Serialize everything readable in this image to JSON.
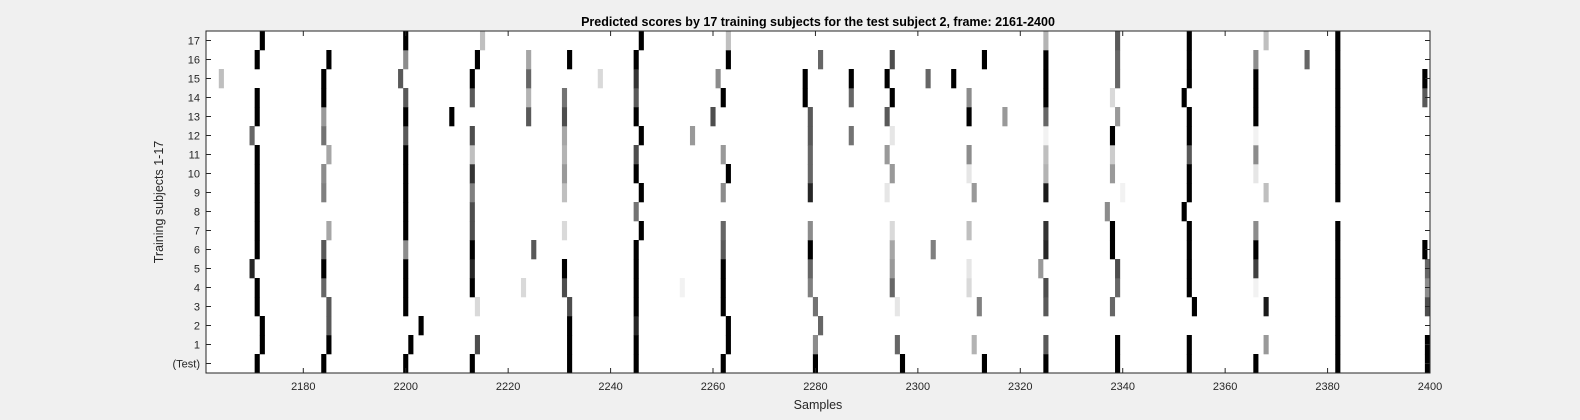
{
  "chart_data": {
    "type": "heatmap",
    "title": "Predicted scores by 17 training subjects for the test subject 2, frame: 2161-2400",
    "xlabel": "Samples",
    "ylabel": "Training subjects 1-17",
    "xlim": [
      2161,
      2400
    ],
    "x_ticks": [
      2180,
      2200,
      2220,
      2240,
      2260,
      2280,
      2300,
      2320,
      2340,
      2360,
      2380,
      2400
    ],
    "rows": [
      "(Test)",
      "1",
      "2",
      "3",
      "4",
      "5",
      "6",
      "7",
      "8",
      "9",
      "10",
      "11",
      "12",
      "13",
      "14",
      "15",
      "16",
      "17"
    ],
    "colormap": "gray (0 = black, 1 = white background)",
    "marks": [
      {
        "row": "(Test)",
        "x": [
          2171,
          2184,
          2200,
          2213,
          2232,
          2245,
          2262,
          2280,
          2297,
          2313,
          2325,
          2339,
          2353,
          2366,
          2382,
          2400
        ],
        "gray": [
          0,
          0,
          0,
          0,
          0,
          0,
          0,
          0,
          0,
          0,
          0,
          0,
          0,
          0,
          0,
          0
        ]
      },
      {
        "row": "1",
        "x": [
          2172,
          2185,
          2201,
          2214,
          2232,
          2245,
          2263,
          2280,
          2296,
          2311,
          2325,
          2339,
          2353,
          2368,
          2382,
          2400
        ],
        "gray": [
          0,
          0,
          0,
          0.3,
          0,
          0,
          0,
          0.55,
          0.4,
          0.7,
          0.35,
          0,
          0,
          0.6,
          0,
          0
        ]
      },
      {
        "row": "2",
        "x": [
          2172,
          2185,
          2203,
          2232,
          2245,
          2263,
          2281,
          2382
        ],
        "gray": [
          0,
          0.35,
          0,
          0,
          0.15,
          0,
          0.4,
          0
        ]
      },
      {
        "row": "3",
        "x": [
          2171,
          2185,
          2200,
          2214,
          2232,
          2245,
          2262,
          2280,
          2296,
          2312,
          2325,
          2338,
          2354,
          2368,
          2382,
          2400
        ],
        "gray": [
          0,
          0.35,
          0,
          0.85,
          0.3,
          0,
          0,
          0.45,
          0.9,
          0.5,
          0.35,
          0.4,
          0,
          0.1,
          0,
          0.3
        ]
      },
      {
        "row": "4",
        "x": [
          2171,
          2184,
          2200,
          2213,
          2223,
          2231,
          2245,
          2254,
          2262,
          2279,
          2295,
          2310,
          2325,
          2339,
          2353,
          2366,
          2382,
          2400
        ],
        "gray": [
          0,
          0.4,
          0,
          0,
          0.85,
          0.3,
          0,
          0.95,
          0,
          0.5,
          0.4,
          0.85,
          0.3,
          0.4,
          0,
          0.95,
          0,
          0.55
        ]
      },
      {
        "row": "5",
        "x": [
          2170,
          2184,
          2200,
          2213,
          2231,
          2245,
          2262,
          2279,
          2295,
          2310,
          2324,
          2339,
          2353,
          2366,
          2382,
          2400
        ],
        "gray": [
          0.15,
          0,
          0,
          0.15,
          0,
          0,
          0,
          0.4,
          0.6,
          0.9,
          0.6,
          0.3,
          0,
          0.25,
          0,
          0.4
        ]
      },
      {
        "row": "6",
        "x": [
          2171,
          2184,
          2200,
          2213,
          2225,
          2245,
          2262,
          2279,
          2295,
          2303,
          2325,
          2338,
          2353,
          2366,
          2382,
          2399
        ],
        "gray": [
          0,
          0.35,
          0.55,
          0,
          0.35,
          0,
          0.35,
          0,
          0.65,
          0.5,
          0.15,
          0,
          0,
          0,
          0,
          0
        ]
      },
      {
        "row": "7",
        "x": [
          2171,
          2185,
          2200,
          2213,
          2231,
          2246,
          2262,
          2279,
          2295,
          2310,
          2325,
          2338,
          2353,
          2366,
          2382
        ],
        "gray": [
          0,
          0.65,
          0,
          0.3,
          0.85,
          0,
          0.4,
          0.55,
          0.85,
          0.75,
          0.2,
          0,
          0,
          0.55,
          0
        ]
      },
      {
        "row": "8",
        "x": [
          2171,
          2200,
          2213,
          2245,
          2337,
          2352
        ],
        "gray": [
          0,
          0,
          0.3,
          0.45,
          0.55,
          0
        ]
      },
      {
        "row": "9",
        "x": [
          2171,
          2184,
          2200,
          2213,
          2231,
          2246,
          2262,
          2279,
          2294,
          2311,
          2325,
          2340,
          2353,
          2368,
          2382
        ],
        "gray": [
          0,
          0.5,
          0,
          0.5,
          0.75,
          0,
          0.55,
          0.15,
          0.9,
          0.6,
          0.1,
          0.95,
          0,
          0.75,
          0
        ]
      },
      {
        "row": "10",
        "x": [
          2171,
          2184,
          2200,
          2213,
          2231,
          2245,
          2263,
          2279,
          2295,
          2310,
          2325,
          2338,
          2353,
          2366,
          2382
        ],
        "gray": [
          0,
          0.55,
          0,
          0.2,
          0.6,
          0,
          0,
          0.4,
          0.6,
          0.9,
          0.7,
          0.6,
          0,
          0.9,
          0
        ]
      },
      {
        "row": "11",
        "x": [
          2171,
          2185,
          2200,
          2213,
          2231,
          2245,
          2262,
          2279,
          2294,
          2310,
          2325,
          2338,
          2353,
          2366,
          2382
        ],
        "gray": [
          0,
          0.65,
          0,
          0.75,
          0.7,
          0.3,
          0.6,
          0.4,
          0.6,
          0.55,
          0.75,
          0.8,
          0.35,
          0.55,
          0
        ]
      },
      {
        "row": "12",
        "x": [
          2170,
          2184,
          2200,
          2213,
          2231,
          2246,
          2256,
          2279,
          2287,
          2295,
          2325,
          2338,
          2353,
          2366,
          2382
        ],
        "gray": [
          0.4,
          0.45,
          0.35,
          0.3,
          0.65,
          0,
          0.6,
          0.35,
          0.45,
          0.9,
          0.95,
          0,
          0,
          0.95,
          0
        ]
      },
      {
        "row": "13",
        "x": [
          2171,
          2184,
          2200,
          2209,
          2224,
          2231,
          2245,
          2260,
          2279,
          2294,
          2310,
          2317,
          2325,
          2339,
          2353,
          2366,
          2382
        ],
        "gray": [
          0,
          0.6,
          0,
          0,
          0.35,
          0.3,
          0,
          0.3,
          0.35,
          0.35,
          0,
          0.6,
          0.4,
          0.6,
          0,
          0,
          0
        ]
      },
      {
        "row": "14",
        "x": [
          2171,
          2184,
          2200,
          2213,
          2224,
          2231,
          2245,
          2262,
          2278,
          2287,
          2295,
          2310,
          2325,
          2338,
          2352,
          2366,
          2382,
          2399
        ],
        "gray": [
          0,
          0,
          0.35,
          0.35,
          0.7,
          0.45,
          0.35,
          0,
          0,
          0.4,
          0,
          0.55,
          0,
          0.85,
          0,
          0,
          0,
          0.35
        ]
      },
      {
        "row": "15",
        "x": [
          2164,
          2184,
          2199,
          2213,
          2224,
          2238,
          2245,
          2261,
          2278,
          2287,
          2294,
          2302,
          2307,
          2325,
          2339,
          2353,
          2366,
          2382,
          2399
        ],
        "gray": [
          0.75,
          0,
          0.35,
          0,
          0.4,
          0.85,
          0.2,
          0.55,
          0,
          0,
          0,
          0.4,
          0,
          0,
          0.4,
          0,
          0,
          0,
          0
        ]
      },
      {
        "row": "16",
        "x": [
          2171,
          2185,
          2200,
          2214,
          2224,
          2232,
          2245,
          2263,
          2281,
          2295,
          2313,
          2325,
          2339,
          2353,
          2366,
          2376,
          2382
        ],
        "gray": [
          0,
          0,
          0.55,
          0,
          0.65,
          0,
          0,
          0,
          0.4,
          0.3,
          0,
          0,
          0.4,
          0,
          0.55,
          0.4,
          0
        ]
      },
      {
        "row": "17",
        "x": [
          2172,
          2200,
          2215,
          2246,
          2263,
          2325,
          2339,
          2353,
          2368,
          2382
        ],
        "gray": [
          0,
          0,
          0.75,
          0,
          0.75,
          0.7,
          0.35,
          0,
          0.75,
          0
        ]
      }
    ]
  }
}
